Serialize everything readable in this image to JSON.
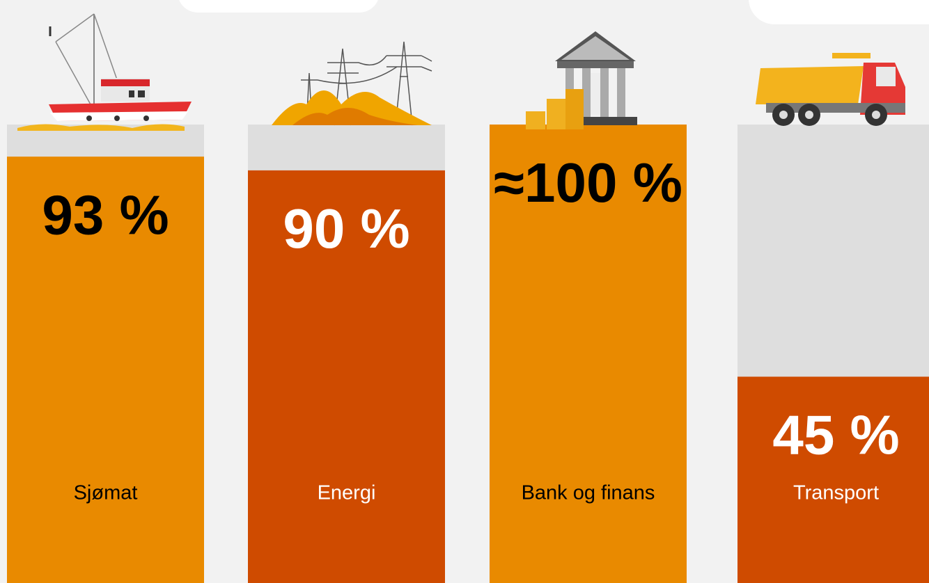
{
  "chart_data": {
    "type": "bar",
    "categories": [
      "Sjømat",
      "Energi",
      "Bank og finans",
      "Transport"
    ],
    "values": [
      93,
      90,
      100,
      45
    ],
    "value_labels": [
      "93 %",
      "90 %",
      "≈100 %",
      "45 %"
    ],
    "colors": [
      "#e98a00",
      "#cf4b00",
      "#e98a00",
      "#cf4b00"
    ],
    "label_colors": [
      "#000000",
      "#ffffff",
      "#000000",
      "#ffffff"
    ],
    "track_color": "#dedede",
    "ylim": [
      0,
      100
    ]
  }
}
